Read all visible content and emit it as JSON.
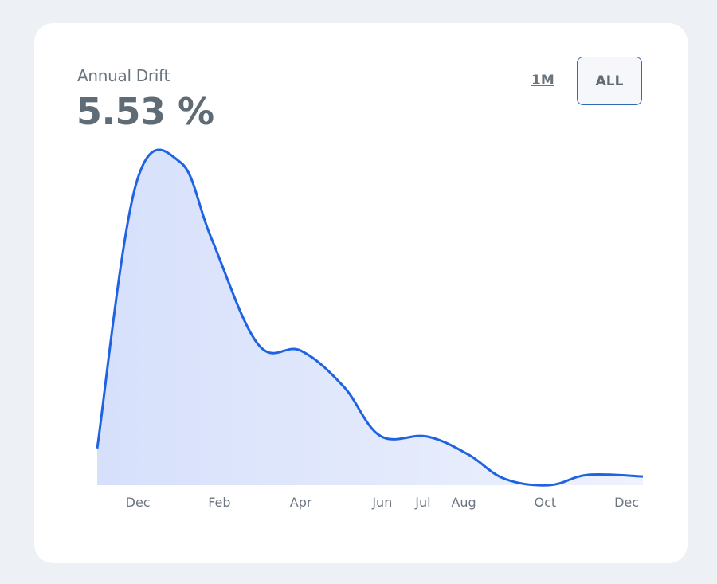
{
  "header": {
    "label": "Annual Drift",
    "value": "5.53 %"
  },
  "range_buttons": [
    {
      "label": "1M",
      "active": false
    },
    {
      "label": "ALL",
      "active": true
    }
  ],
  "colors": {
    "line": "#1f63e0",
    "fill_start": "#d6e0fb",
    "fill_end": "#eef2fc",
    "card": "#ffffff",
    "background": "#edf1f5"
  },
  "chart_data": {
    "type": "area",
    "title": "",
    "xlabel": "",
    "ylabel": "",
    "grid": false,
    "y_axis_shown": false,
    "ylim": [
      0,
      100
    ],
    "xlim": [
      -1,
      12.4
    ],
    "x_ticks": [
      {
        "label": "Dec",
        "x": 0
      },
      {
        "label": "Feb",
        "x": 2
      },
      {
        "label": "Apr",
        "x": 4
      },
      {
        "label": "Jun",
        "x": 6
      },
      {
        "label": "Jul",
        "x": 7
      },
      {
        "label": "Aug",
        "x": 8
      },
      {
        "label": "Oct",
        "x": 10
      },
      {
        "label": "Dec",
        "x": 12
      }
    ],
    "points": [
      [
        -1.0,
        11.4
      ],
      [
        -0.04,
        93.6
      ],
      [
        1.05,
        100
      ],
      [
        1.81,
        76.3
      ],
      [
        2.95,
        43.7
      ],
      [
        4.0,
        41.7
      ],
      [
        5.05,
        30.6
      ],
      [
        5.95,
        15.3
      ],
      [
        7.1,
        15.1
      ],
      [
        8.1,
        9.6
      ],
      [
        9.0,
        2.0
      ],
      [
        10.1,
        0
      ],
      [
        11.05,
        3.2
      ],
      [
        12.4,
        2.7
      ]
    ]
  }
}
